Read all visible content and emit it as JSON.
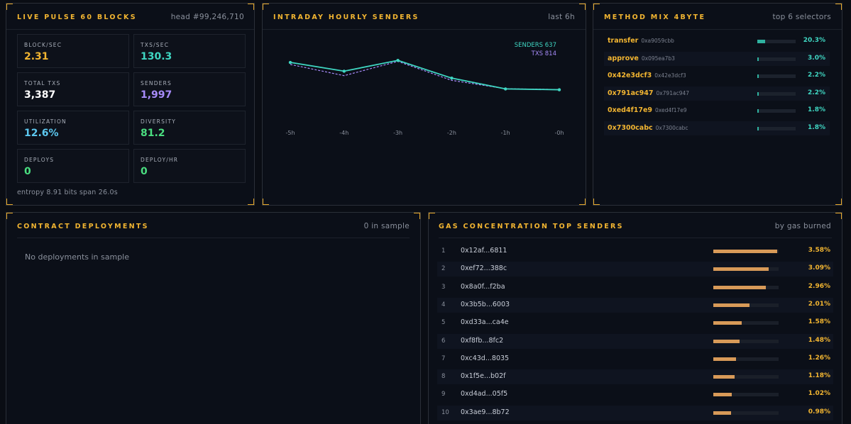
{
  "pulse": {
    "title": "LIVE PULSE 60 BLOCKS",
    "head": "head #99,246,710",
    "stats": [
      {
        "label": "BLOCK/SEC",
        "value": "2.31",
        "color": "#f2b531"
      },
      {
        "label": "TXS/SEC",
        "value": "130.3",
        "color": "#3fd6c2"
      },
      {
        "label": "TOTAL TXS",
        "value": "3,387",
        "color": "#ffffff"
      },
      {
        "label": "SENDERS",
        "value": "1,997",
        "color": "#a78bfa"
      },
      {
        "label": "UTILIZATION",
        "value": "12.6%",
        "color": "#5cc8f0"
      },
      {
        "label": "DIVERSITY",
        "value": "81.2",
        "color": "#4ade80"
      },
      {
        "label": "DEPLOYS",
        "value": "0",
        "color": "#4ade80"
      },
      {
        "label": "DEPLOY/HR",
        "value": "0",
        "color": "#4ade80"
      }
    ],
    "footer": "entropy 8.91 bits span 26.0s"
  },
  "intraday": {
    "title": "INTRADAY HOURLY SENDERS",
    "meta": "last 6h"
  },
  "chart_data": {
    "type": "line",
    "categories": [
      "-5h",
      "-4h",
      "-3h",
      "-2h",
      "-1h",
      "-0h"
    ],
    "series": [
      {
        "name": "SENDERS",
        "values": [
          806,
          763,
          816,
          729,
          676,
          672
        ],
        "color": "#3fd6c2",
        "style": "solid"
      },
      {
        "name": "TXS",
        "values": [
          796,
          741,
          811,
          718,
          677,
          673
        ],
        "color": "#a78bfa",
        "style": "dashed"
      }
    ],
    "legend": {
      "senders": "SENDERS 637",
      "txs": "TXS 814"
    },
    "ylim": [
      500,
      900
    ],
    "grid": false,
    "legend_position": "top-right"
  },
  "methods": {
    "title": "METHOD MIX 4BYTE",
    "meta": "top 6 selectors",
    "rows": [
      {
        "name": "transfer",
        "selector": "0xa9059cbb",
        "pct": "20.3%",
        "frac": 0.203
      },
      {
        "name": "approve",
        "selector": "0x095ea7b3",
        "pct": "3.0%",
        "frac": 0.03
      },
      {
        "name": "0x42e3dcf3",
        "selector": "0x42e3dcf3",
        "pct": "2.2%",
        "frac": 0.022
      },
      {
        "name": "0x791ac947",
        "selector": "0x791ac947",
        "pct": "2.2%",
        "frac": 0.022
      },
      {
        "name": "0xed4f17e9",
        "selector": "0xed4f17e9",
        "pct": "1.8%",
        "frac": 0.018
      },
      {
        "name": "0x7300cabc",
        "selector": "0x7300cabc",
        "pct": "1.8%",
        "frac": 0.018
      }
    ]
  },
  "deployments": {
    "title": "CONTRACT DEPLOYMENTS",
    "meta": "0 in sample",
    "empty": "No deployments in sample"
  },
  "gas": {
    "title": "GAS CONCENTRATION TOP SENDERS",
    "meta": "by gas burned",
    "rows": [
      {
        "idx": "1",
        "addr": "0x12af...6811",
        "pct": "3.58%",
        "frac": 0.0358
      },
      {
        "idx": "2",
        "addr": "0xef72...388c",
        "pct": "3.09%",
        "frac": 0.0309
      },
      {
        "idx": "3",
        "addr": "0x8a0f...f2ba",
        "pct": "2.96%",
        "frac": 0.0296
      },
      {
        "idx": "4",
        "addr": "0x3b5b...6003",
        "pct": "2.01%",
        "frac": 0.0201
      },
      {
        "idx": "5",
        "addr": "0xd33a...ca4e",
        "pct": "1.58%",
        "frac": 0.0158
      },
      {
        "idx": "6",
        "addr": "0xf8fb...8fc2",
        "pct": "1.48%",
        "frac": 0.0148
      },
      {
        "idx": "7",
        "addr": "0xc43d...8035",
        "pct": "1.26%",
        "frac": 0.0126
      },
      {
        "idx": "8",
        "addr": "0x1f5e...b02f",
        "pct": "1.18%",
        "frac": 0.0118
      },
      {
        "idx": "9",
        "addr": "0xd4ad...05f5",
        "pct": "1.02%",
        "frac": 0.0102
      },
      {
        "idx": "10",
        "addr": "0x3ae9...8b72",
        "pct": "0.98%",
        "frac": 0.0098
      }
    ]
  }
}
